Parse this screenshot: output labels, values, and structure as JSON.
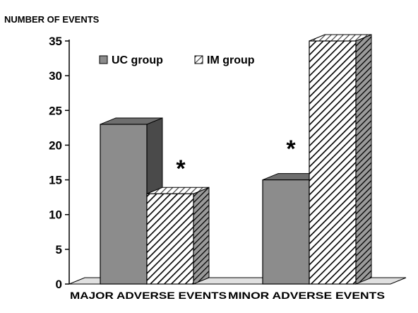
{
  "chart_data": {
    "type": "bar",
    "ylabel": "NUMBER OF EVENTS",
    "xlabel": "",
    "categories": [
      "MAJOR ADVERSE EVENTS",
      "MINOR ADVERSE EVENTS"
    ],
    "series": [
      {
        "name": "UC group",
        "values": [
          23,
          15
        ],
        "color": "#8c8c8c",
        "pattern": "solid"
      },
      {
        "name": "IM group",
        "values": [
          13,
          35
        ],
        "color": "#ffffff",
        "pattern": "diagonal-hatch"
      }
    ],
    "ylim": [
      0,
      35
    ],
    "yticks": [
      0,
      5,
      10,
      15,
      20,
      25,
      30,
      35
    ],
    "grid": false,
    "legend_position": "top-left",
    "three_d": true,
    "annotations": [
      {
        "category": "MAJOR ADVERSE EVENTS",
        "text": "*"
      },
      {
        "category": "MINOR ADVERSE EVENTS",
        "text": "*"
      }
    ]
  }
}
